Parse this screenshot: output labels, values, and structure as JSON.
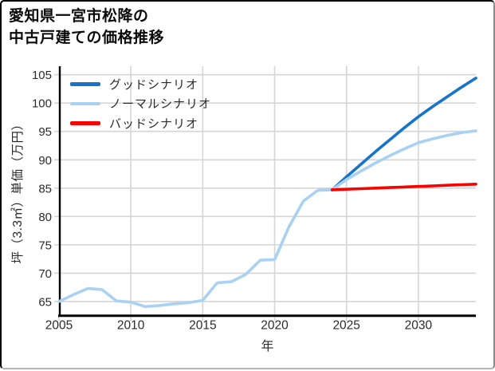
{
  "header": {
    "title_line1": "愛知県一宮市松降の",
    "title_line2": "中古戸建ての価格推移"
  },
  "chart_data": {
    "type": "line",
    "title": "愛知県一宮市松降の中古戸建ての価格推移",
    "xlabel": "年",
    "ylabel": "坪（3.3㎡）単価（万円）",
    "xlim": [
      2005,
      2034
    ],
    "ylim": [
      62.6,
      106.5
    ],
    "x_ticks": [
      2005,
      2010,
      2015,
      2020,
      2025,
      2030
    ],
    "y_ticks": [
      65,
      70,
      75,
      80,
      85,
      90,
      95,
      100,
      105
    ],
    "grid": true,
    "legend_position": "upper-left-inside",
    "colors": {
      "good": "#1774c8",
      "normal": "#a9d1f2",
      "bad": "#fa0000",
      "grid": "#d5d5d5",
      "axis": "#000000",
      "text": "#2b2b2b"
    },
    "series": [
      {
        "key": "history",
        "label": "",
        "color": "#a9d1f2",
        "years": [
          2005,
          2006,
          2007,
          2008,
          2009,
          2010,
          2011,
          2012,
          2013,
          2014,
          2015,
          2016,
          2017,
          2018,
          2019,
          2020,
          2021,
          2022,
          2023,
          2024
        ],
        "values": [
          65.0,
          66.2,
          67.3,
          67.1,
          65.1,
          64.9,
          64.1,
          64.3,
          64.6,
          64.8,
          65.2,
          68.3,
          68.5,
          69.8,
          72.3,
          72.4,
          78.2,
          82.7,
          84.6,
          84.7
        ]
      },
      {
        "key": "good",
        "label": "グッドシナリオ",
        "color": "#1774c8",
        "years": [
          2024,
          2025,
          2026,
          2027,
          2028,
          2029,
          2030,
          2031,
          2032,
          2033,
          2034
        ],
        "values": [
          84.7,
          87.0,
          89.2,
          91.4,
          93.5,
          95.6,
          97.6,
          99.4,
          101.1,
          102.8,
          104.4
        ]
      },
      {
        "key": "normal",
        "label": "ノーマルシナリオ",
        "color": "#a9d1f2",
        "years": [
          2024,
          2025,
          2026,
          2027,
          2028,
          2029,
          2030,
          2031,
          2032,
          2033,
          2034
        ],
        "values": [
          84.7,
          86.5,
          88.0,
          89.4,
          90.7,
          91.9,
          93.0,
          93.7,
          94.3,
          94.8,
          95.1
        ]
      },
      {
        "key": "bad",
        "label": "バッドシナリオ",
        "color": "#fa0000",
        "years": [
          2024,
          2025,
          2026,
          2027,
          2028,
          2029,
          2030,
          2031,
          2032,
          2033,
          2034
        ],
        "values": [
          84.7,
          84.8,
          84.9,
          85.0,
          85.1,
          85.2,
          85.3,
          85.4,
          85.5,
          85.6,
          85.7
        ]
      }
    ]
  }
}
